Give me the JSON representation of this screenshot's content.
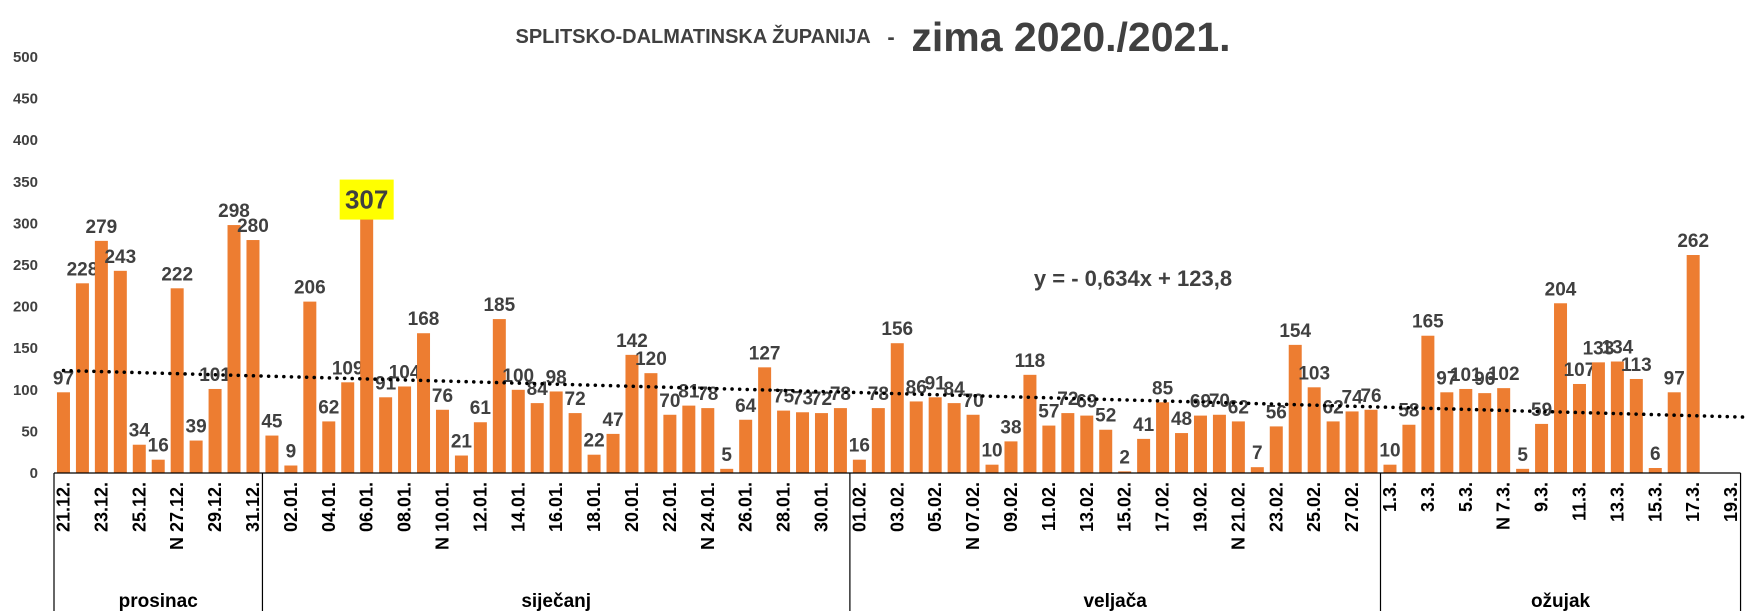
{
  "chart_data": {
    "type": "bar",
    "title_prefix": "SPLITSKO-DALMATINSKA ŽUPANIJA",
    "title_separator": "-",
    "title_main": "zima 2020./2021.",
    "ylim": [
      0,
      500
    ],
    "yticks": [
      0,
      50,
      100,
      150,
      200,
      250,
      300,
      350,
      400,
      450,
      500
    ],
    "grid": false,
    "bar_color": "#ED7D31",
    "highlight_color": "#FFFF00",
    "label_color": "#404040",
    "highlight_index": 16,
    "trendline_label": "y = - 0,634x + 123,8",
    "trendline": {
      "slope": -0.634,
      "intercept": 123.8
    },
    "values": [
      97,
      228,
      279,
      243,
      34,
      16,
      222,
      39,
      101,
      298,
      280,
      45,
      9,
      206,
      62,
      109,
      307,
      91,
      104,
      168,
      76,
      21,
      61,
      185,
      100,
      84,
      98,
      72,
      22,
      47,
      142,
      120,
      70,
      81,
      78,
      5,
      64,
      127,
      75,
      73,
      72,
      78,
      16,
      78,
      156,
      86,
      91,
      84,
      70,
      10,
      38,
      118,
      57,
      72,
      69,
      52,
      2,
      41,
      85,
      48,
      69,
      70,
      62,
      7,
      56,
      154,
      103,
      62,
      74,
      76,
      10,
      58,
      165,
      97,
      101,
      96,
      102,
      5,
      59,
      204,
      107,
      133,
      134,
      113,
      6,
      97,
      262,
      null,
      null
    ],
    "tick_labels": [
      {
        "i": 0,
        "text": "21.12."
      },
      {
        "i": 2,
        "text": "23.12."
      },
      {
        "i": 4,
        "text": "25.12."
      },
      {
        "i": 6,
        "text": "N 27.12."
      },
      {
        "i": 8,
        "text": "29.12."
      },
      {
        "i": 10,
        "text": "31.12."
      },
      {
        "i": 12,
        "text": "02.01."
      },
      {
        "i": 14,
        "text": "04.01."
      },
      {
        "i": 16,
        "text": "06.01."
      },
      {
        "i": 18,
        "text": "08.01."
      },
      {
        "i": 20,
        "text": "N 10.01."
      },
      {
        "i": 22,
        "text": "12.01."
      },
      {
        "i": 24,
        "text": "14.01."
      },
      {
        "i": 26,
        "text": "16.01."
      },
      {
        "i": 28,
        "text": "18.01."
      },
      {
        "i": 30,
        "text": "20.01."
      },
      {
        "i": 32,
        "text": "22.01."
      },
      {
        "i": 34,
        "text": "N 24.01."
      },
      {
        "i": 36,
        "text": "26.01."
      },
      {
        "i": 38,
        "text": "28.01."
      },
      {
        "i": 40,
        "text": "30.01."
      },
      {
        "i": 42,
        "text": "01.02."
      },
      {
        "i": 44,
        "text": "03.02."
      },
      {
        "i": 46,
        "text": "05.02."
      },
      {
        "i": 48,
        "text": "N 07.02."
      },
      {
        "i": 50,
        "text": "09.02."
      },
      {
        "i": 52,
        "text": "11.02."
      },
      {
        "i": 54,
        "text": "13.02."
      },
      {
        "i": 56,
        "text": "15.02."
      },
      {
        "i": 58,
        "text": "17.02."
      },
      {
        "i": 60,
        "text": "19.02."
      },
      {
        "i": 62,
        "text": "N 21.02."
      },
      {
        "i": 64,
        "text": "23.02."
      },
      {
        "i": 66,
        "text": "25.02."
      },
      {
        "i": 68,
        "text": "27.02."
      },
      {
        "i": 70,
        "text": "1.3."
      },
      {
        "i": 72,
        "text": "3.3."
      },
      {
        "i": 74,
        "text": "5.3."
      },
      {
        "i": 76,
        "text": "N   7.3."
      },
      {
        "i": 78,
        "text": "9.3."
      },
      {
        "i": 80,
        "text": "11.3."
      },
      {
        "i": 82,
        "text": "13.3."
      },
      {
        "i": 84,
        "text": "15.3."
      },
      {
        "i": 86,
        "text": "17.3."
      },
      {
        "i": 88,
        "text": "19.3."
      }
    ],
    "months": [
      {
        "name": "prosinac",
        "start": 0,
        "end": 10
      },
      {
        "name": "siječanj",
        "start": 11,
        "end": 41
      },
      {
        "name": "veljača",
        "start": 42,
        "end": 69
      },
      {
        "name": "ožujak",
        "start": 70,
        "end": 88
      }
    ]
  }
}
